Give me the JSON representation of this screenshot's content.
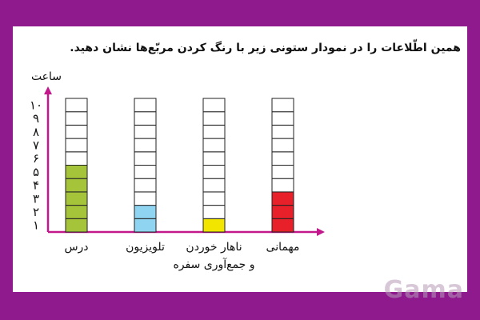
{
  "instruction": "همین اطّلاعات را در نمودار ستونی زیر با رنگ کردن مربّع‌ها نشان دهید.",
  "watermark": "Gama",
  "colors": {
    "frame": "#8e1a8e",
    "axis": "#c2188c",
    "cell_border": "#222222",
    "empty_cell": "#ffffff"
  },
  "chart_data": {
    "type": "bar",
    "ylabel": "ساعت",
    "ylim": [
      0,
      10
    ],
    "ticks": [
      "۱",
      "۲",
      "۳",
      "۴",
      "۵",
      "۶",
      "۷",
      "۸",
      "۹",
      "۱۰"
    ],
    "categories": [
      "درس",
      "تلویزیون",
      "ناهار خوردن و جمع‌آوری سفره",
      "مهمانی"
    ],
    "category_lines": [
      [
        "درس"
      ],
      [
        "تلویزیون"
      ],
      [
        "ناهار خوردن",
        "و جمع‌آوری سفره"
      ],
      [
        "مهمانی"
      ]
    ],
    "values": [
      5,
      2,
      1,
      3
    ],
    "bar_colors": [
      "#a6c43a",
      "#8fd4f0",
      "#f2e600",
      "#e8202a"
    ]
  }
}
